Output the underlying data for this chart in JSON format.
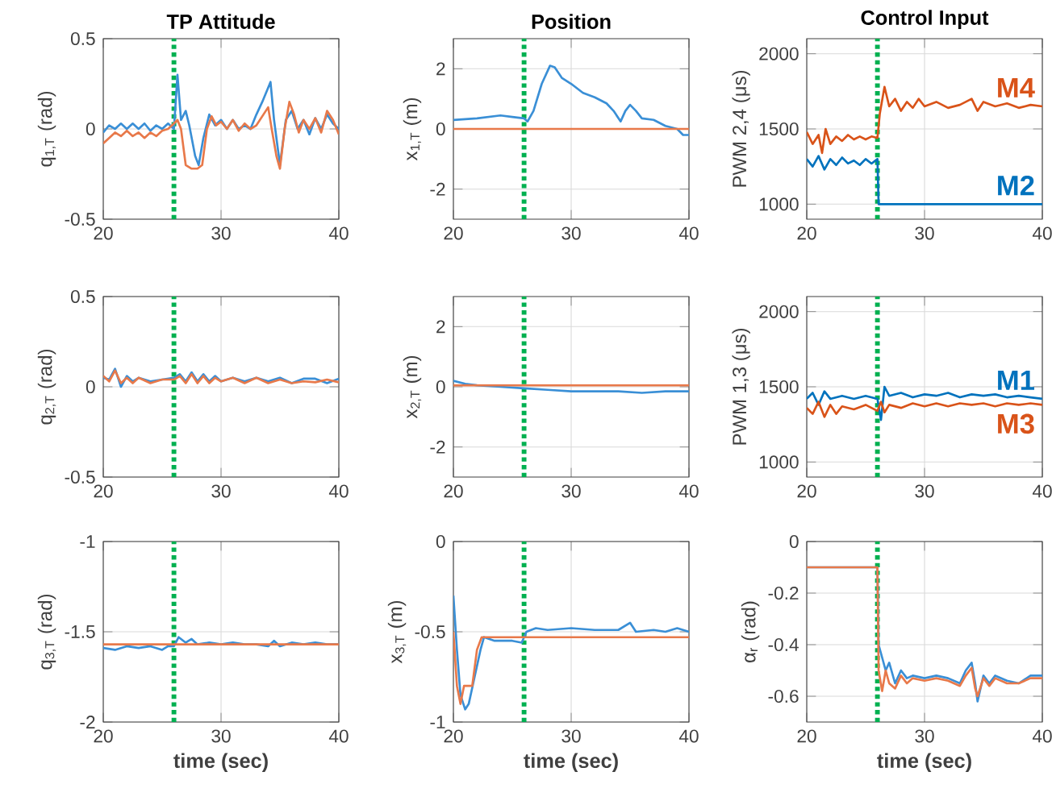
{
  "chart_data": [
    {
      "type": "line",
      "title": "TP Attitude",
      "ylabel": "q$_{1,T}$ (rad)",
      "xlim": [
        20,
        40
      ],
      "xticks": [
        20,
        30,
        40
      ],
      "ylim": [
        -0.5,
        0.5
      ],
      "yticks": [
        -0.5,
        0,
        0.5
      ],
      "grid": true,
      "ref_lines": [
        {
          "axis": "x",
          "value": 26,
          "color": "#00b050",
          "line_style": "dotted"
        }
      ],
      "series": [
        {
          "color": "#3a8fd6",
          "x": [
            20,
            20.5,
            21,
            21.5,
            22,
            22.5,
            23,
            23.5,
            24,
            24.5,
            25,
            25.5,
            26,
            26.3,
            26.6,
            27,
            27.3,
            27.8,
            28.1,
            28.5,
            29,
            29.5,
            30,
            30.5,
            31,
            31.5,
            32,
            32.5,
            33,
            33.5,
            34.2,
            34.5,
            35,
            35.5,
            36,
            36.5,
            37,
            37.5,
            38,
            38.5,
            39,
            39.5,
            40
          ],
          "values": [
            -0.02,
            0.02,
            0.0,
            0.03,
            0.0,
            0.03,
            0.0,
            0.03,
            -0.01,
            0.02,
            0.0,
            0.03,
            0.0,
            0.3,
            0.05,
            0.1,
            0.02,
            -0.15,
            -0.2,
            -0.05,
            0.08,
            0.02,
            0.05,
            0.0,
            0.05,
            0.0,
            0.02,
            0.0,
            0.08,
            0.15,
            0.26,
            0.05,
            -0.2,
            0.05,
            0.1,
            0.0,
            0.05,
            -0.03,
            0.06,
            0.0,
            0.08,
            0.03,
            0.0
          ]
        },
        {
          "color": "#e8794a",
          "x": [
            20,
            20.5,
            21,
            21.5,
            22,
            22.5,
            23,
            23.5,
            24,
            24.5,
            25,
            25.5,
            26,
            26.3,
            26.6,
            27,
            27.5,
            28,
            28.4,
            28.8,
            29.2,
            29.6,
            30,
            30.5,
            31,
            31.5,
            32,
            32.5,
            33,
            33.5,
            34,
            34.3,
            34.7,
            35,
            35.4,
            35.8,
            36.2,
            36.6,
            37,
            37.5,
            38,
            38.5,
            39,
            39.5,
            40
          ],
          "values": [
            -0.08,
            -0.05,
            -0.02,
            -0.04,
            -0.01,
            -0.04,
            -0.02,
            -0.05,
            -0.02,
            -0.04,
            -0.01,
            0.0,
            0.03,
            0.05,
            0.0,
            -0.2,
            -0.22,
            -0.22,
            -0.2,
            0.0,
            0.07,
            0.02,
            0.04,
            0.0,
            0.05,
            -0.01,
            0.03,
            0.0,
            0.02,
            0.07,
            0.12,
            0.0,
            -0.15,
            -0.22,
            0.0,
            0.15,
            0.08,
            -0.02,
            0.05,
            0.0,
            0.06,
            -0.02,
            0.1,
            0.05,
            -0.03
          ]
        }
      ]
    },
    {
      "type": "line",
      "title": "Position",
      "ylabel": "x$_{1,T}$ (m)",
      "xlim": [
        20,
        40
      ],
      "xticks": [
        20,
        30,
        40
      ],
      "ylim": [
        -3,
        3
      ],
      "yticks": [
        -2,
        0,
        2
      ],
      "grid": true,
      "ref_lines": [
        {
          "axis": "x",
          "value": 26,
          "color": "#00b050",
          "line_style": "dotted"
        }
      ],
      "series": [
        {
          "color": "#3a8fd6",
          "x": [
            20,
            22,
            24,
            25,
            26,
            26.3,
            26.8,
            27.5,
            28.2,
            28.6,
            29.2,
            30,
            31,
            32,
            33,
            33.6,
            34.2,
            34.6,
            35,
            35.5,
            36,
            37,
            38,
            39,
            39.5,
            40
          ],
          "values": [
            0.3,
            0.35,
            0.45,
            0.4,
            0.35,
            0.25,
            0.6,
            1.5,
            2.1,
            2.05,
            1.7,
            1.5,
            1.2,
            1.05,
            0.85,
            0.6,
            0.25,
            0.6,
            0.8,
            0.6,
            0.35,
            0.3,
            0.1,
            0.0,
            -0.2,
            -0.2
          ]
        },
        {
          "color": "#e8794a",
          "x": [
            20,
            40
          ],
          "values": [
            0,
            0
          ]
        }
      ]
    },
    {
      "type": "line",
      "title": "Control Input",
      "ylabel": "PWM 2,4 (μs)",
      "xlim": [
        20,
        40
      ],
      "xticks": [
        20,
        30,
        40
      ],
      "ylim": [
        900,
        2100
      ],
      "yticks": [
        1000,
        1500,
        2000
      ],
      "grid": true,
      "ref_lines": [
        {
          "axis": "x",
          "value": 26,
          "color": "#00b050",
          "line_style": "dotted"
        }
      ],
      "series": [
        {
          "name": "M2",
          "color": "#0072bd",
          "x": [
            20,
            20.5,
            21,
            21.5,
            22,
            22.5,
            23,
            23.5,
            24,
            24.5,
            25,
            25.5,
            26,
            26.1,
            40
          ],
          "values": [
            1300,
            1250,
            1320,
            1230,
            1300,
            1260,
            1310,
            1270,
            1290,
            1260,
            1300,
            1270,
            1300,
            1000,
            1000
          ]
        },
        {
          "name": "M4",
          "color": "#d95319",
          "x": [
            20,
            20.5,
            21,
            21.3,
            21.6,
            22,
            22.5,
            23,
            23.5,
            24,
            24.5,
            25,
            25.5,
            26,
            26.2,
            26.6,
            27,
            27.5,
            28,
            28.5,
            29,
            29.5,
            30,
            31,
            32,
            33,
            34,
            34.5,
            35,
            36,
            37,
            38,
            39,
            40
          ],
          "values": [
            1480,
            1400,
            1460,
            1340,
            1500,
            1400,
            1450,
            1420,
            1460,
            1430,
            1450,
            1430,
            1450,
            1440,
            1600,
            1780,
            1650,
            1700,
            1620,
            1680,
            1640,
            1700,
            1650,
            1680,
            1640,
            1660,
            1700,
            1620,
            1680,
            1650,
            1670,
            1640,
            1660,
            1650
          ]
        }
      ]
    },
    {
      "type": "line",
      "ylabel": "q$_{2,T}$ (rad)",
      "xlim": [
        20,
        40
      ],
      "xticks": [
        20,
        30,
        40
      ],
      "ylim": [
        -0.5,
        0.5
      ],
      "yticks": [
        -0.5,
        0,
        0.5
      ],
      "grid": true,
      "ref_lines": [
        {
          "axis": "x",
          "value": 26,
          "color": "#00b050",
          "line_style": "dotted"
        }
      ],
      "series": [
        {
          "color": "#3a8fd6",
          "x": [
            20,
            20.5,
            21,
            21.5,
            22,
            22.5,
            23,
            24,
            25,
            26,
            26.5,
            27,
            27.5,
            28,
            28.5,
            29,
            29.5,
            30,
            31,
            32,
            33,
            34,
            35,
            36,
            37,
            38,
            39,
            40
          ],
          "values": [
            0.05,
            0.04,
            0.1,
            0.0,
            0.06,
            0.03,
            0.05,
            0.03,
            0.04,
            0.05,
            0.07,
            0.03,
            0.08,
            0.03,
            0.07,
            0.03,
            0.06,
            0.03,
            0.05,
            0.03,
            0.05,
            0.03,
            0.05,
            0.02,
            0.045,
            0.045,
            0.02,
            0.045
          ]
        },
        {
          "color": "#e8794a",
          "x": [
            20,
            20.5,
            21,
            21.5,
            22,
            22.5,
            23,
            24,
            25,
            26,
            26.5,
            27,
            27.5,
            28,
            28.5,
            29,
            29.5,
            30,
            31,
            32,
            33,
            34,
            35,
            36,
            37,
            38,
            39,
            40
          ],
          "values": [
            0.06,
            0.03,
            0.09,
            0.02,
            0.05,
            0.02,
            0.05,
            0.02,
            0.04,
            0.04,
            0.06,
            0.02,
            0.07,
            0.02,
            0.06,
            0.02,
            0.05,
            0.03,
            0.05,
            0.02,
            0.05,
            0.02,
            0.04,
            0.02,
            0.03,
            0.025,
            0.04,
            0.025
          ]
        }
      ]
    },
    {
      "type": "line",
      "ylabel": "x$_{2,T}$ (m)",
      "xlim": [
        20,
        40
      ],
      "xticks": [
        20,
        30,
        40
      ],
      "ylim": [
        -3,
        3
      ],
      "yticks": [
        -2,
        0,
        2
      ],
      "grid": true,
      "ref_lines": [
        {
          "axis": "x",
          "value": 26,
          "color": "#00b050",
          "line_style": "dotted"
        }
      ],
      "series": [
        {
          "color": "#3a8fd6",
          "x": [
            20,
            21,
            22,
            24,
            26,
            28,
            30,
            32,
            34,
            36,
            38,
            40
          ],
          "values": [
            0.2,
            0.1,
            0.05,
            0.0,
            -0.05,
            -0.1,
            -0.15,
            -0.15,
            -0.15,
            -0.2,
            -0.15,
            -0.15
          ]
        },
        {
          "color": "#e8794a",
          "x": [
            20,
            40
          ],
          "values": [
            0.05,
            0.05
          ]
        }
      ]
    },
    {
      "type": "line",
      "ylabel": "PWM 1,3 (μs)",
      "xlim": [
        20,
        40
      ],
      "xticks": [
        20,
        30,
        40
      ],
      "ylim": [
        900,
        2100
      ],
      "yticks": [
        1000,
        1500,
        2000
      ],
      "grid": true,
      "ref_lines": [
        {
          "axis": "x",
          "value": 26,
          "color": "#00b050",
          "line_style": "dotted"
        }
      ],
      "series": [
        {
          "name": "M1",
          "color": "#0072bd",
          "x": [
            20,
            20.5,
            21,
            21.5,
            22,
            23,
            24,
            25,
            26,
            26.3,
            26.6,
            27,
            28,
            29,
            30,
            31,
            32,
            33,
            34,
            35,
            36,
            37,
            38,
            39,
            40
          ],
          "values": [
            1420,
            1460,
            1380,
            1470,
            1420,
            1440,
            1420,
            1440,
            1420,
            1280,
            1500,
            1440,
            1460,
            1430,
            1450,
            1440,
            1460,
            1430,
            1450,
            1440,
            1450,
            1430,
            1440,
            1430,
            1420
          ]
        },
        {
          "name": "M3",
          "color": "#d95319",
          "x": [
            20,
            20.5,
            21,
            21.5,
            22,
            22.5,
            23,
            24,
            25,
            26,
            26.3,
            26.6,
            27,
            28,
            29,
            30,
            31,
            32,
            33,
            34,
            35,
            36,
            37,
            38,
            39,
            40
          ],
          "values": [
            1360,
            1320,
            1400,
            1300,
            1380,
            1320,
            1370,
            1350,
            1380,
            1340,
            1400,
            1330,
            1380,
            1360,
            1390,
            1370,
            1390,
            1370,
            1390,
            1380,
            1390,
            1370,
            1390,
            1380,
            1390,
            1380
          ]
        }
      ]
    },
    {
      "type": "line",
      "xlabel": "time (sec)",
      "ylabel": "q$_{3,T}$ (rad)",
      "xlim": [
        20,
        40
      ],
      "xticks": [
        20,
        30,
        40
      ],
      "ylim": [
        -2,
        -1
      ],
      "yticks": [
        -2,
        -1.5,
        -1
      ],
      "grid": true,
      "ref_lines": [
        {
          "axis": "x",
          "value": 26,
          "color": "#00b050",
          "line_style": "dotted"
        }
      ],
      "series": [
        {
          "color": "#3a8fd6",
          "x": [
            20,
            21,
            22,
            23,
            24,
            25,
            25.5,
            26,
            26.4,
            27,
            27.5,
            28,
            29,
            30,
            31,
            32,
            33,
            34,
            34.5,
            35,
            36,
            37,
            38,
            39,
            40
          ],
          "values": [
            -1.59,
            -1.6,
            -1.58,
            -1.59,
            -1.58,
            -1.6,
            -1.58,
            -1.58,
            -1.53,
            -1.56,
            -1.54,
            -1.57,
            -1.56,
            -1.57,
            -1.56,
            -1.57,
            -1.57,
            -1.58,
            -1.55,
            -1.58,
            -1.56,
            -1.57,
            -1.56,
            -1.57,
            -1.57
          ]
        },
        {
          "color": "#e8794a",
          "x": [
            20,
            40
          ],
          "values": [
            -1.57,
            -1.57
          ]
        }
      ]
    },
    {
      "type": "line",
      "xlabel": "time (sec)",
      "ylabel": "x$_{3,T}$ (m)",
      "xlim": [
        20,
        40
      ],
      "xticks": [
        20,
        30,
        40
      ],
      "ylim": [
        -1,
        0
      ],
      "yticks": [
        -1,
        -0.5,
        0
      ],
      "grid": true,
      "ref_lines": [
        {
          "axis": "x",
          "value": 26,
          "color": "#00b050",
          "line_style": "dotted"
        }
      ],
      "series": [
        {
          "color": "#3a8fd6",
          "x": [
            20,
            20.3,
            20.6,
            21,
            21.3,
            21.8,
            22.3,
            22.6,
            23.5,
            25,
            25.8,
            26.2,
            27,
            28,
            30,
            32,
            34,
            35,
            35.5,
            37,
            38,
            39,
            40
          ],
          "values": [
            -0.3,
            -0.6,
            -0.85,
            -0.93,
            -0.9,
            -0.75,
            -0.6,
            -0.53,
            -0.55,
            -0.55,
            -0.56,
            -0.5,
            -0.48,
            -0.49,
            -0.48,
            -0.49,
            -0.49,
            -0.45,
            -0.5,
            -0.49,
            -0.5,
            -0.48,
            -0.5
          ]
        },
        {
          "color": "#e8794a",
          "x": [
            20,
            20.3,
            20.6,
            20.9,
            21.6,
            22,
            22.4,
            40
          ],
          "values": [
            -0.5,
            -0.8,
            -0.9,
            -0.8,
            -0.8,
            -0.6,
            -0.53,
            -0.53
          ]
        }
      ]
    },
    {
      "type": "line",
      "xlabel": "time (sec)",
      "ylabel": "α$_{r}$ (rad)",
      "xlim": [
        20,
        40
      ],
      "xticks": [
        20,
        30,
        40
      ],
      "ylim": [
        -0.7,
        0
      ],
      "yticks": [
        -0.6,
        -0.4,
        -0.2,
        0
      ],
      "grid": true,
      "ref_lines": [
        {
          "axis": "x",
          "value": 26,
          "color": "#00b050",
          "line_style": "dotted"
        }
      ],
      "series": [
        {
          "color": "#3a8fd6",
          "x": [
            20,
            26,
            26.1,
            26.4,
            26.7,
            27,
            27.5,
            28,
            28.5,
            29,
            30,
            31,
            32,
            33,
            33.5,
            34,
            34.3,
            34.5,
            35,
            35.5,
            36,
            37,
            38,
            39,
            40
          ],
          "values": [
            -0.1,
            -0.1,
            -0.4,
            -0.45,
            -0.5,
            -0.47,
            -0.55,
            -0.5,
            -0.53,
            -0.52,
            -0.53,
            -0.52,
            -0.53,
            -0.55,
            -0.5,
            -0.47,
            -0.55,
            -0.62,
            -0.52,
            -0.55,
            -0.52,
            -0.54,
            -0.55,
            -0.52,
            -0.52
          ]
        },
        {
          "color": "#e8794a",
          "x": [
            20,
            26,
            26.1,
            26.4,
            26.7,
            27,
            27.5,
            28,
            28.5,
            29,
            30,
            31,
            32,
            33,
            33.5,
            34,
            34.3,
            34.5,
            35,
            35.5,
            36,
            37,
            38,
            39,
            40
          ],
          "values": [
            -0.1,
            -0.1,
            -0.5,
            -0.58,
            -0.5,
            -0.55,
            -0.57,
            -0.52,
            -0.55,
            -0.53,
            -0.54,
            -0.53,
            -0.54,
            -0.56,
            -0.52,
            -0.49,
            -0.57,
            -0.6,
            -0.53,
            -0.56,
            -0.53,
            -0.55,
            -0.55,
            -0.53,
            -0.53
          ]
        }
      ]
    }
  ]
}
